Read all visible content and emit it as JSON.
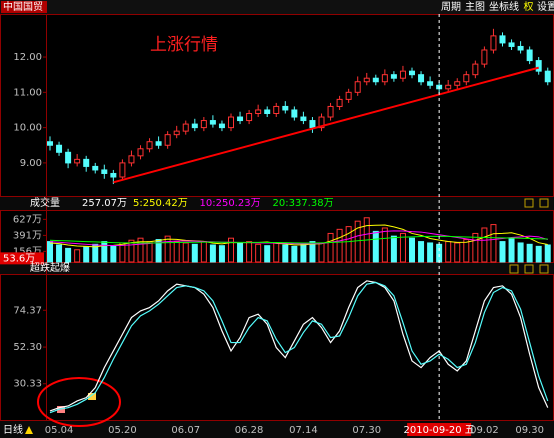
{
  "header": {
    "stock_name": "中国国贸",
    "menu": [
      "周期",
      "主图",
      "坐标线",
      "权",
      "设置"
    ],
    "period_label": "日线"
  },
  "chart_data": [
    {
      "type": "candlestick",
      "annotation": "上涨行情",
      "ylim": [
        8.09,
        13.22
      ],
      "yticks": [
        {
          "value": 9,
          "label": "9.00"
        },
        {
          "value": 10,
          "label": "10.00"
        },
        {
          "value": 11,
          "label": "11.00"
        },
        {
          "value": 12,
          "label": "12.00"
        }
      ],
      "up_color": "#ff3232",
      "down_color": "#54fcfc",
      "open": [
        9.6,
        9.5,
        9.3,
        9.0,
        9.1,
        8.9,
        8.8,
        8.7,
        8.6,
        9.0,
        9.2,
        9.4,
        9.6,
        9.5,
        9.8,
        9.9,
        10.1,
        10.0,
        10.2,
        10.1,
        10.0,
        10.3,
        10.2,
        10.4,
        10.5,
        10.4,
        10.6,
        10.5,
        10.3,
        10.2,
        10.0,
        10.3,
        10.6,
        10.8,
        11.0,
        11.3,
        11.4,
        11.3,
        11.5,
        11.4,
        11.6,
        11.5,
        11.3,
        11.2,
        11.1,
        11.2,
        11.3,
        11.5,
        11.8,
        12.2,
        12.6,
        12.4,
        12.3,
        12.2,
        11.9,
        11.6
      ],
      "high": [
        9.75,
        9.6,
        9.4,
        9.25,
        9.2,
        9.0,
        8.95,
        8.8,
        9.1,
        9.35,
        9.5,
        9.7,
        9.75,
        9.9,
        10.05,
        10.2,
        10.25,
        10.3,
        10.35,
        10.2,
        10.4,
        10.45,
        10.5,
        10.65,
        10.6,
        10.7,
        10.75,
        10.6,
        10.45,
        10.3,
        10.4,
        10.7,
        10.9,
        11.1,
        11.45,
        11.55,
        11.5,
        11.65,
        11.6,
        11.75,
        11.7,
        11.6,
        11.45,
        11.3,
        11.35,
        11.4,
        11.6,
        11.9,
        12.3,
        12.8,
        12.7,
        12.5,
        12.45,
        12.3,
        12.0,
        11.7
      ],
      "low": [
        9.35,
        9.2,
        8.85,
        8.9,
        8.75,
        8.7,
        8.55,
        8.4,
        8.5,
        8.9,
        9.1,
        9.3,
        9.4,
        9.4,
        9.7,
        9.8,
        9.9,
        9.9,
        10.0,
        9.9,
        9.9,
        10.1,
        10.1,
        10.3,
        10.3,
        10.3,
        10.4,
        10.2,
        10.1,
        9.85,
        9.9,
        10.2,
        10.5,
        10.7,
        10.9,
        11.2,
        11.2,
        11.2,
        11.3,
        11.3,
        11.4,
        11.2,
        11.1,
        10.95,
        11.0,
        11.1,
        11.2,
        11.4,
        11.7,
        12.1,
        12.3,
        12.2,
        12.1,
        11.8,
        11.5,
        11.2
      ],
      "close": [
        9.5,
        9.3,
        9.0,
        9.1,
        8.9,
        8.8,
        8.7,
        8.6,
        9.0,
        9.2,
        9.4,
        9.6,
        9.5,
        9.8,
        9.9,
        10.1,
        10.0,
        10.2,
        10.1,
        10.0,
        10.3,
        10.2,
        10.4,
        10.5,
        10.4,
        10.6,
        10.5,
        10.3,
        10.2,
        10.0,
        10.3,
        10.6,
        10.8,
        11.0,
        11.3,
        11.4,
        11.3,
        11.5,
        11.4,
        11.6,
        11.5,
        11.3,
        11.2,
        11.1,
        11.2,
        11.3,
        11.5,
        11.8,
        12.2,
        12.6,
        12.4,
        12.3,
        12.2,
        11.9,
        11.6,
        11.3
      ],
      "trendline": {
        "x": [
          7,
          54
        ],
        "y": [
          8.45,
          11.7
        ],
        "color": "#ff0000"
      }
    },
    {
      "type": "bar",
      "title": "成交量",
      "total_label": "257.07万",
      "ylim": [
        0,
        735
      ],
      "yticks": [
        {
          "value": 156,
          "label": "156万"
        },
        {
          "value": 391,
          "label": "391万"
        },
        {
          "value": 627,
          "label": "627万"
        }
      ],
      "cursor_label": {
        "value": 53.6,
        "label": "53.6万"
      },
      "values": [
        300,
        250,
        200,
        180,
        220,
        260,
        300,
        240,
        280,
        320,
        350,
        300,
        330,
        380,
        300,
        280,
        260,
        300,
        250,
        240,
        350,
        280,
        300,
        260,
        240,
        280,
        250,
        230,
        260,
        300,
        280,
        420,
        480,
        520,
        600,
        650,
        450,
        500,
        380,
        420,
        350,
        300,
        280,
        260,
        300,
        280,
        330,
        420,
        500,
        550,
        300,
        350,
        280,
        260,
        230,
        250
      ],
      "series": [
        {
          "name": "5:250.42万",
          "color": "#ffff00",
          "values": [
            280,
            270,
            250,
            235,
            230,
            222,
            240,
            244,
            260,
            284,
            298,
            298,
            316,
            336,
            332,
            318,
            310,
            304,
            278,
            266,
            286,
            284,
            284,
            286,
            294,
            274,
            266,
            252,
            252,
            264,
            268,
            308,
            358,
            420,
            500,
            534,
            540,
            544,
            516,
            480,
            420,
            392,
            346,
            322,
            302,
            288,
            290,
            318,
            366,
            416,
            420,
            430,
            396,
            348,
            284,
            258
          ]
        },
        {
          "name": "10:250.23万",
          "color": "#ff00ff",
          "values": [
            300,
            290,
            280,
            270,
            260,
            250,
            245,
            242,
            245,
            252,
            262,
            272,
            288,
            300,
            308,
            308,
            306,
            300,
            296,
            290,
            290,
            286,
            286,
            282,
            280,
            280,
            276,
            270,
            268,
            270,
            272,
            288,
            310,
            340,
            384,
            410,
            430,
            450,
            458,
            456,
            446,
            440,
            420,
            400,
            380,
            360,
            340,
            320,
            320,
            330,
            345,
            360,
            370,
            380,
            370,
            330
          ]
        },
        {
          "name": "20:337.38万",
          "color": "#00ff00",
          "values": [
            320,
            315,
            310,
            305,
            300,
            295,
            290,
            285,
            282,
            280,
            280,
            280,
            282,
            284,
            286,
            288,
            290,
            292,
            292,
            290,
            288,
            288,
            288,
            288,
            287,
            286,
            284,
            282,
            280,
            280,
            282,
            286,
            292,
            300,
            312,
            324,
            336,
            348,
            358,
            366,
            370,
            374,
            376,
            378,
            376,
            372,
            368,
            364,
            360,
            356,
            354,
            352,
            350,
            346,
            342,
            338
          ]
        }
      ]
    },
    {
      "type": "line",
      "title": "超跌起爆",
      "ylim": [
        8.6,
        96.1
      ],
      "yticks": [
        30.33,
        {
          "value": 52.3,
          "label": "52.30"
        },
        74.37
      ],
      "categories": [
        null,
        "05.04",
        null,
        null,
        null,
        null,
        null,
        null,
        "05.20",
        null,
        null,
        null,
        null,
        null,
        null,
        "06.07",
        null,
        null,
        null,
        null,
        null,
        null,
        "06.28",
        null,
        null,
        null,
        null,
        null,
        "07.14",
        null,
        null,
        null,
        null,
        null,
        null,
        "07.30",
        null,
        null,
        null,
        null,
        null,
        null,
        null,
        "2010-09-20 五",
        null,
        null,
        null,
        null,
        "09.02",
        null,
        null,
        null,
        null,
        "09.30",
        null,
        null
      ],
      "cursor": 43,
      "series": [
        {
          "color": "#ffffff",
          "values": [
            14,
            16,
            17,
            20,
            22,
            28,
            40,
            50,
            60,
            70,
            74,
            76,
            80,
            86,
            90,
            89,
            88,
            84,
            76,
            62,
            50,
            58,
            70,
            72,
            66,
            52,
            46,
            56,
            66,
            70,
            64,
            55,
            62,
            76,
            88,
            92,
            91,
            88,
            80,
            60,
            44,
            40,
            46,
            50,
            42,
            38,
            44,
            62,
            80,
            88,
            89,
            84,
            70,
            48,
            28,
            16
          ]
        },
        {
          "color": "#54fcfc",
          "values": [
            13,
            15,
            16,
            18,
            21,
            25,
            34,
            45,
            55,
            65,
            71,
            74,
            78,
            83,
            88,
            89,
            88,
            86,
            80,
            68,
            55,
            55,
            64,
            70,
            68,
            57,
            49,
            52,
            61,
            68,
            66,
            58,
            59,
            70,
            83,
            90,
            91,
            89,
            83,
            67,
            50,
            42,
            44,
            48,
            45,
            40,
            42,
            55,
            73,
            85,
            88,
            86,
            75,
            55,
            35,
            20
          ]
        }
      ]
    }
  ]
}
